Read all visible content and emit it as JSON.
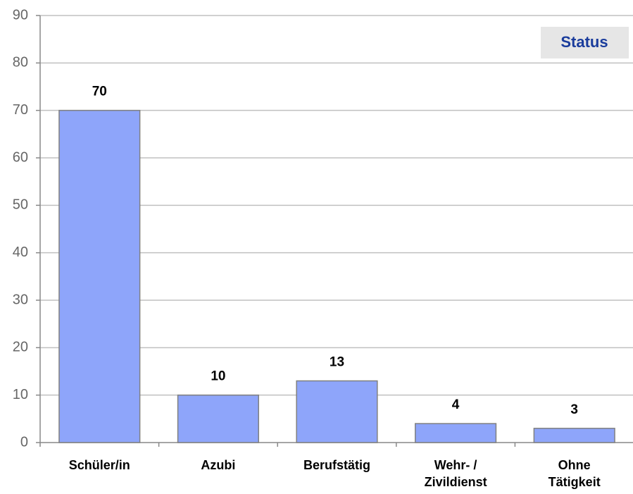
{
  "chart_data": {
    "type": "bar",
    "title": "Status",
    "categories": [
      "Schüler/in",
      "Azubi",
      "Berufstätig",
      "Wehr- / Zivildienst",
      "Ohne Tätigkeit"
    ],
    "values": [
      70,
      10,
      13,
      4,
      3
    ],
    "color": "#8ea5fa",
    "ylim": [
      0,
      90
    ],
    "yticks": [
      0,
      10,
      20,
      30,
      40,
      50,
      60,
      70,
      80,
      90
    ],
    "grid": true
  }
}
